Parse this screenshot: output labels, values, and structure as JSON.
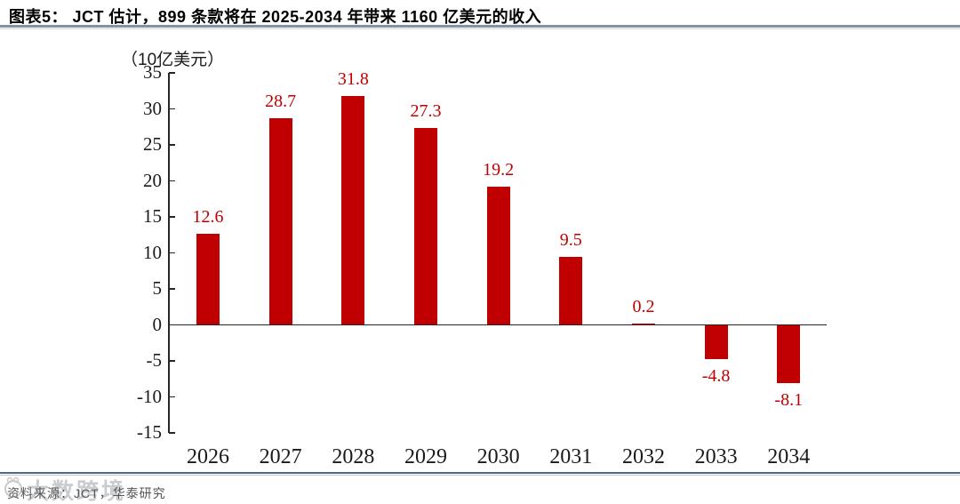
{
  "title": "图表5： JCT 估计，899 条款将在 2025-2034 年带来 1160 亿美元的收入",
  "chart_data": {
    "type": "bar",
    "title": "JCT 估计，899 条款将在 2025-2034 年带来 1160 亿美元的收入",
    "unit_label": "（10亿美元）",
    "xlabel": "",
    "ylabel": "10亿美元",
    "categories": [
      "2026",
      "2027",
      "2028",
      "2029",
      "2030",
      "2031",
      "2032",
      "2033",
      "2034"
    ],
    "values": [
      12.6,
      28.7,
      31.8,
      27.3,
      19.2,
      9.5,
      0.2,
      -4.8,
      -8.1
    ],
    "data_labels": [
      "12.6",
      "28.7",
      "31.8",
      "27.3",
      "19.2",
      "9.5",
      "0.2",
      "-4.8",
      "-8.1"
    ],
    "ylim": [
      -15,
      35
    ],
    "yticks": [
      35,
      30,
      25,
      20,
      15,
      10,
      5,
      0,
      -5,
      -10,
      -15
    ],
    "ytick_labels": [
      "35",
      "30",
      "25",
      "20",
      "15",
      "10",
      "5",
      "0",
      "-5",
      "-10",
      "-15"
    ],
    "grid": false,
    "legend": "none"
  },
  "colors": {
    "bar": "#C00000",
    "data_label": "#C00000",
    "axis": "#262626",
    "separator": "#7E93A8"
  },
  "footer": {
    "source": "资料来源：JCT，华泰研究",
    "watermark": "大数跨境"
  }
}
